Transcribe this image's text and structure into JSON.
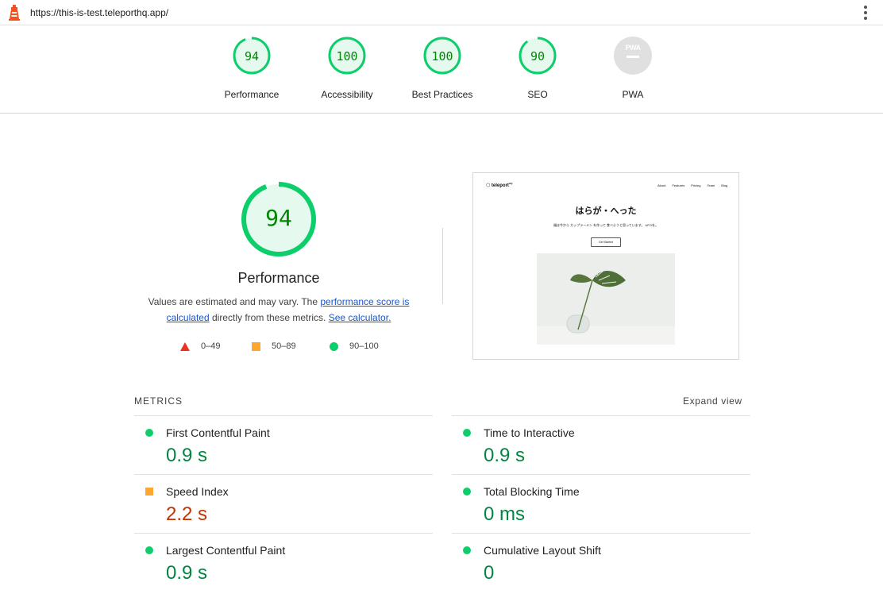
{
  "url": "https://this-is-test.teleporthq.app/",
  "gauges": [
    {
      "label": "Performance",
      "value": "94",
      "score": 0.94
    },
    {
      "label": "Accessibility",
      "value": "100",
      "score": 1.0
    },
    {
      "label": "Best Practices",
      "value": "100",
      "score": 1.0
    },
    {
      "label": "SEO",
      "value": "90",
      "score": 0.9
    },
    {
      "label": "PWA",
      "badge_text": "PWA"
    }
  ],
  "main": {
    "value": "94",
    "score": 0.94,
    "title": "Performance",
    "desc_prefix": "Values are estimated and may vary. The ",
    "desc_link": "performance score is calculated",
    "desc_middle": " directly from these metrics. ",
    "desc_link2": "See calculator."
  },
  "legend": {
    "poor": "0–49",
    "average": "50–89",
    "good": "90–100"
  },
  "preview": {
    "logo": "teleport",
    "logo_sup": "HQ",
    "nav": [
      "About",
      "Features",
      "Pricing",
      "Team",
      "Blog"
    ],
    "title": "はらが・へった",
    "subtitle": "福は今から カップラーメン を作って 食べようと思っています。 UFOを。",
    "button": "Get Started"
  },
  "metrics": {
    "title": "METRICS",
    "expand": "Expand view",
    "items": [
      {
        "label": "First Contentful Paint",
        "value": "0.9 s",
        "status": "good"
      },
      {
        "label": "Time to Interactive",
        "value": "0.9 s",
        "status": "good"
      },
      {
        "label": "Speed Index",
        "value": "2.2 s",
        "status": "average"
      },
      {
        "label": "Total Blocking Time",
        "value": "0 ms",
        "status": "good"
      },
      {
        "label": "Largest Contentful Paint",
        "value": "0.9 s",
        "status": "good"
      },
      {
        "label": "Cumulative Layout Shift",
        "value": "0",
        "status": "good"
      }
    ]
  },
  "colors": {
    "good": "#0cce6b",
    "average": "#fda630",
    "poor": "#eb3223",
    "good_text": "#018642",
    "average_text": "#c33300"
  }
}
